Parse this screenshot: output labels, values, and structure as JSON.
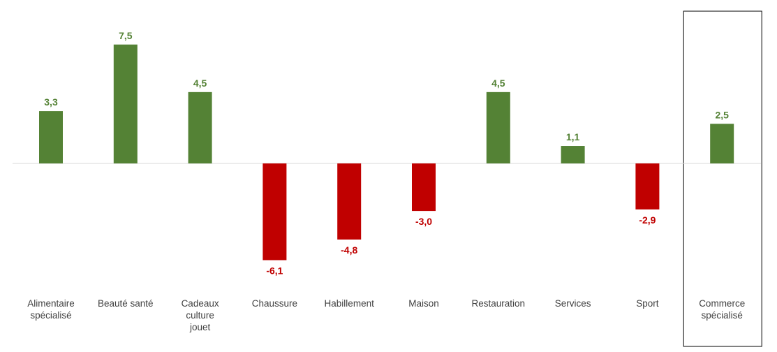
{
  "chart_data": {
    "type": "bar",
    "categories": [
      "Alimentaire spécialisé",
      "Beauté santé",
      "Cadeaux culture jouet",
      "Chaussure",
      "Habillement",
      "Maison",
      "Restauration",
      "Services",
      "Sport",
      "Commerce spécialisé"
    ],
    "category_lines": [
      [
        "Alimentaire",
        "spécialisé"
      ],
      [
        "Beauté santé"
      ],
      [
        "Cadeaux",
        "culture",
        "jouet"
      ],
      [
        "Chaussure"
      ],
      [
        "Habillement"
      ],
      [
        "Maison"
      ],
      [
        "Restauration"
      ],
      [
        "Services"
      ],
      [
        "Sport"
      ],
      [
        "Commerce",
        "spécialisé"
      ]
    ],
    "values": [
      3.3,
      7.5,
      4.5,
      -6.1,
      -4.8,
      -3.0,
      4.5,
      1.1,
      -2.9,
      2.5
    ],
    "value_labels": [
      "3,3",
      "7,5",
      "4,5",
      "-6,1",
      "-4,8",
      "-3,0",
      "4,5",
      "1,1",
      "-2,9",
      "2,5"
    ],
    "title": "",
    "xlabel": "",
    "ylabel": "",
    "ylim": [
      -8,
      9
    ],
    "grid": false,
    "legend": "none",
    "highlighted_category": "Commerce spécialisé",
    "colors": {
      "positive": "#548235",
      "negative": "#C00000",
      "axis": "#D9D9D9",
      "highlight_border": "#000000",
      "category_text": "#404040"
    }
  }
}
